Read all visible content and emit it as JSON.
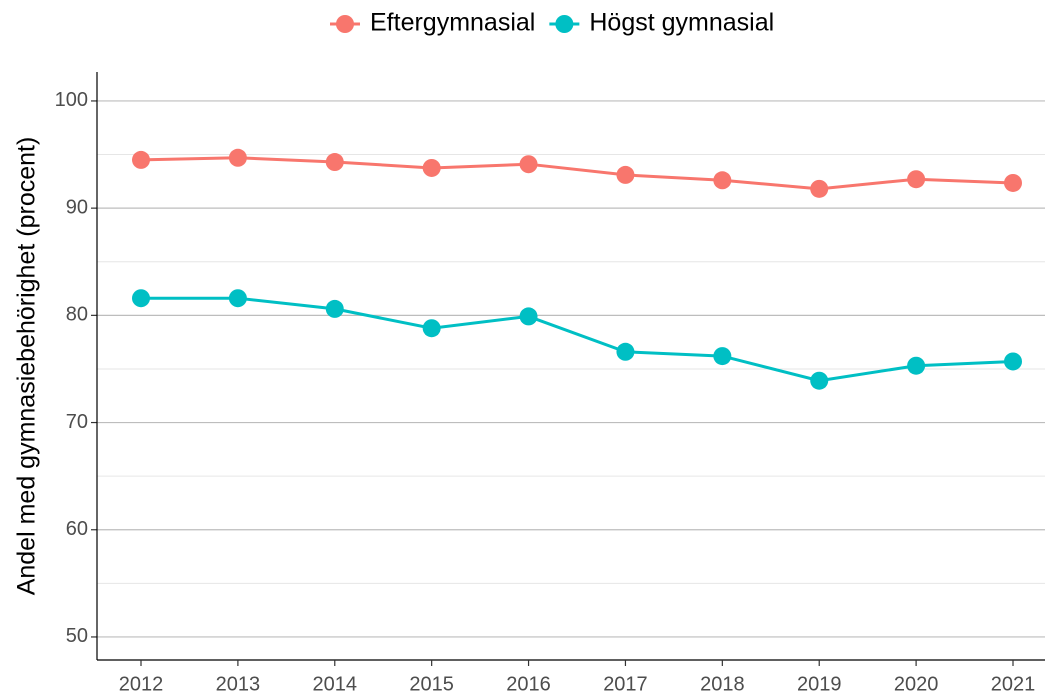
{
  "chart_data": {
    "type": "line",
    "ylabel": "Andel med gymnasiebehörighet (procent)",
    "categories": [
      "2012",
      "2013",
      "2014",
      "2015",
      "2016",
      "2017",
      "2018",
      "2019",
      "2020",
      "2021"
    ],
    "series": [
      {
        "name": "Eftergymnasial",
        "color": "#F8766D",
        "values": [
          94.5,
          94.7,
          94.3,
          93.75,
          94.1,
          93.1,
          92.6,
          91.8,
          92.7,
          92.35
        ]
      },
      {
        "name": "Högst gymnasial",
        "color": "#00BFC4",
        "values": [
          81.6,
          81.6,
          80.6,
          78.8,
          79.9,
          76.6,
          76.2,
          73.9,
          75.3,
          75.7
        ]
      }
    ],
    "ylim": [
      47.85,
      102.7
    ],
    "yticks": [
      50,
      60,
      70,
      80,
      90,
      100
    ],
    "grid": true,
    "minor_grid": true,
    "legend": "top"
  }
}
